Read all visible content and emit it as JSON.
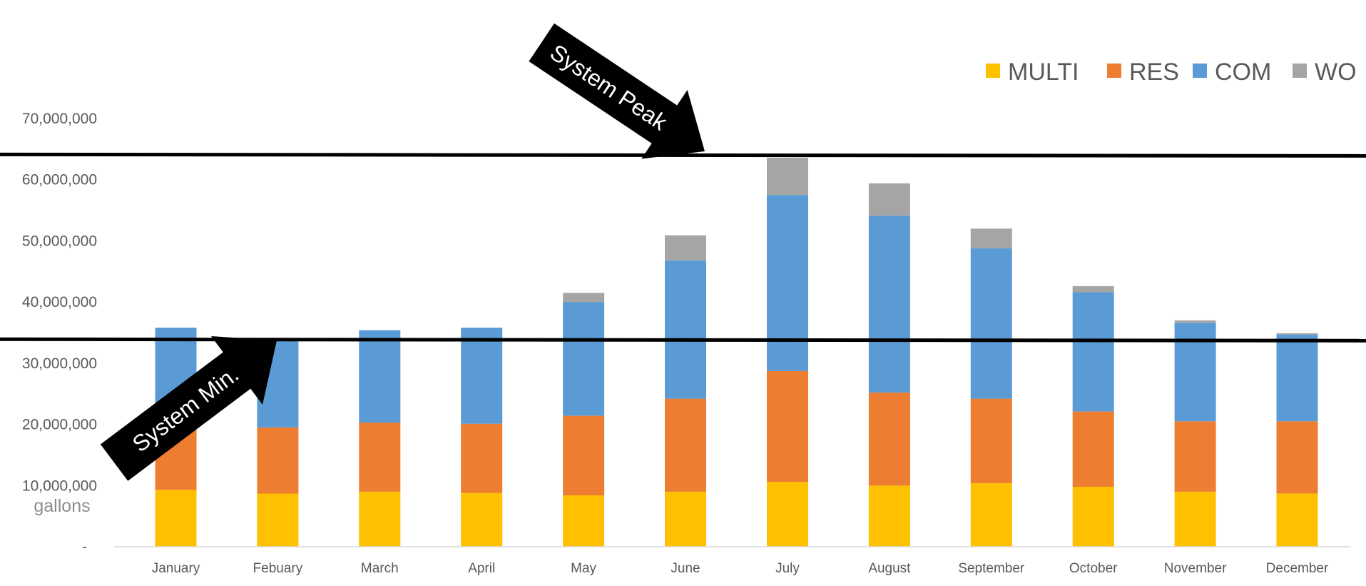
{
  "chart_data": {
    "type": "bar",
    "stacked": true,
    "categories": [
      "January",
      "Febuary",
      "March",
      "April",
      "May",
      "June",
      "July",
      "August",
      "September",
      "October",
      "November",
      "December"
    ],
    "series": [
      {
        "name": "MULTI",
        "color": "#ffc000",
        "values": [
          9300000,
          8700000,
          9000000,
          8800000,
          8400000,
          9000000,
          10600000,
          10000000,
          10400000,
          9800000,
          9000000,
          8700000
        ]
      },
      {
        "name": "RES",
        "color": "#ed7d31",
        "values": [
          11000000,
          10800000,
          11300000,
          11300000,
          13000000,
          15200000,
          18100000,
          15200000,
          13800000,
          12300000,
          11500000,
          11800000
        ]
      },
      {
        "name": "COM",
        "color": "#5b9bd5",
        "values": [
          15500000,
          14100000,
          15100000,
          15700000,
          18600000,
          22600000,
          28800000,
          28900000,
          24600000,
          19500000,
          16100000,
          14200000
        ]
      },
      {
        "name": "WO",
        "color": "#a5a5a5",
        "values": [
          0,
          0,
          0,
          0,
          1500000,
          4100000,
          6100000,
          5300000,
          3200000,
          1000000,
          400000,
          200000
        ]
      }
    ],
    "ylim": [
      0,
      70000000
    ],
    "yticks": [
      0,
      10000000,
      20000000,
      30000000,
      40000000,
      50000000,
      60000000,
      70000000
    ],
    "ytick_labels": [
      "-",
      "10,000,000",
      "20,000,000",
      "30,000,000",
      "40,000,000",
      "50,000,000",
      "60,000,000",
      "70,000,000"
    ],
    "unit_label": "gallons",
    "grid": false,
    "legend_position": "top-right",
    "reference_lines": [
      {
        "label": "System Peak",
        "value": 64000000
      },
      {
        "label": "System Min.",
        "value": 33800000
      }
    ]
  }
}
